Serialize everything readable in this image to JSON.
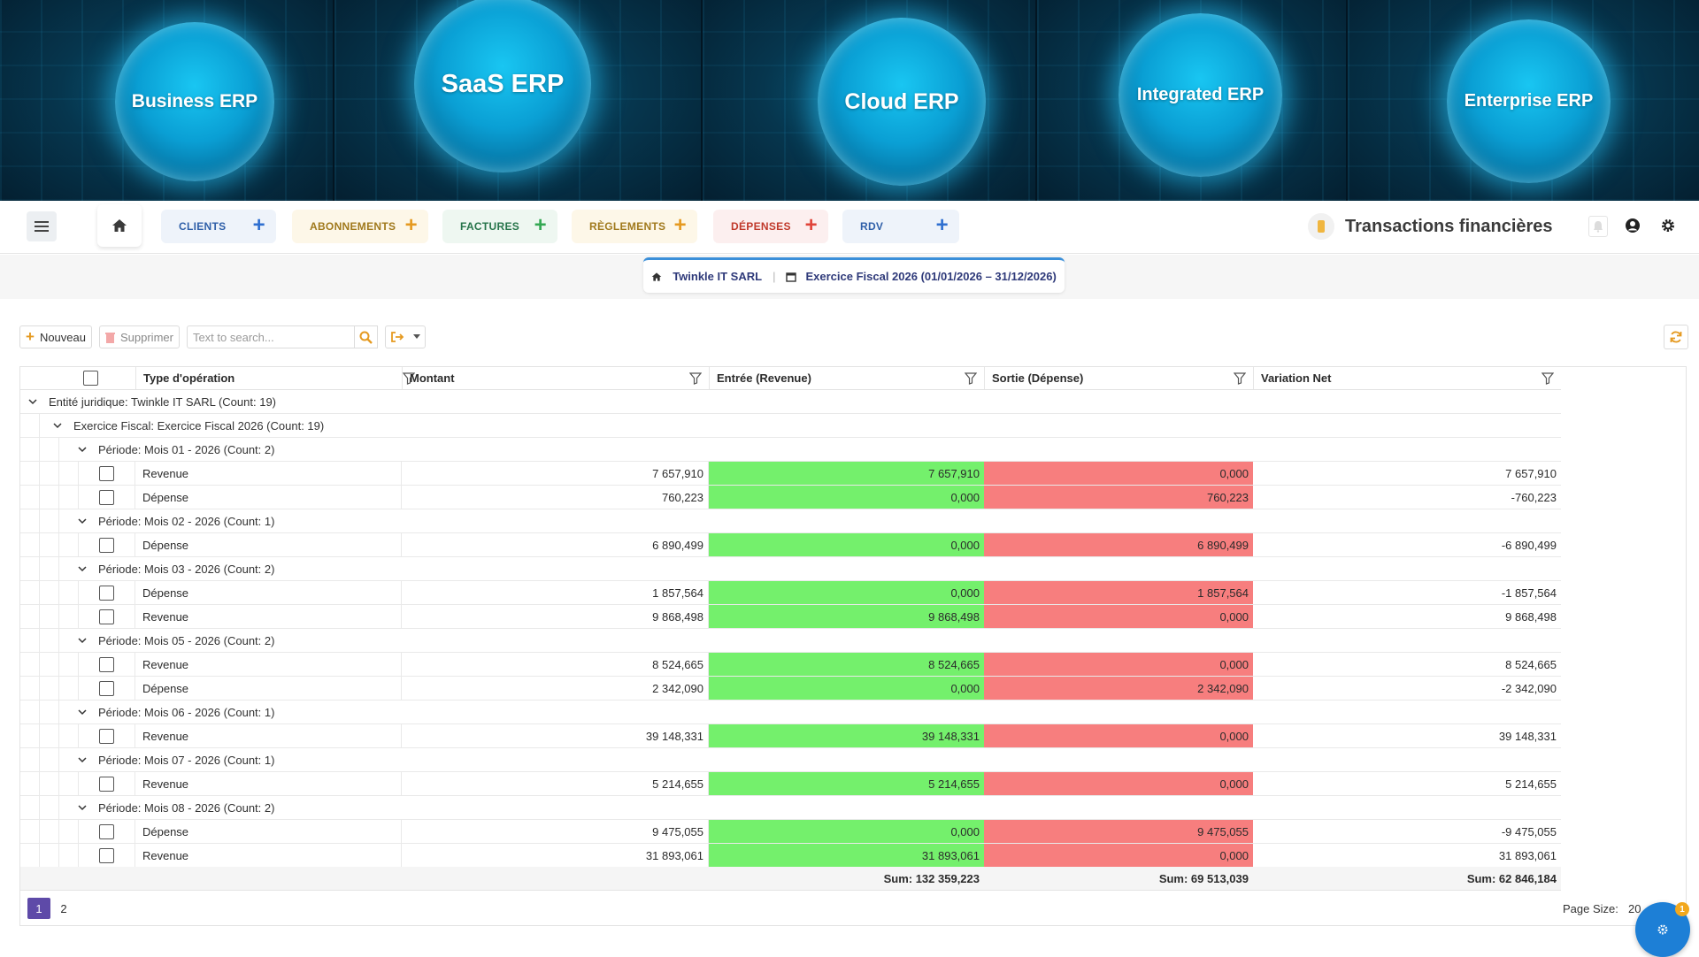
{
  "banner": {
    "panels": [
      {
        "label": "Business ERP"
      },
      {
        "label": "SaaS ERP"
      },
      {
        "label": "Cloud ERP"
      },
      {
        "label": "Integrated ERP"
      },
      {
        "label": "Enterprise ERP"
      }
    ]
  },
  "nav": {
    "tabs": [
      {
        "label": "CLIENTS",
        "color": "#2f5fa8",
        "bg": "#eef3fa",
        "plus_color": "#2f6fd0"
      },
      {
        "label": "ABONNEMENTS",
        "color": "#a0791c",
        "bg": "#fdf7e8",
        "plus_color": "#e59a21"
      },
      {
        "label": "FACTURES",
        "color": "#26744a",
        "bg": "#eef7f1",
        "plus_color": "#34a853"
      },
      {
        "label": "RÈGLEMENTS",
        "color": "#a0791c",
        "bg": "#fdf7e8",
        "plus_color": "#e59a21"
      },
      {
        "label": "DÉPENSES",
        "color": "#c0392b",
        "bg": "#fcefef",
        "plus_color": "#e0443a"
      },
      {
        "label": "RDV",
        "color": "#2f5fa8",
        "bg": "#eef3fa",
        "plus_color": "#2f6fd0"
      }
    ],
    "plus_glyph": "+",
    "page_title": "Transactions financières"
  },
  "context": {
    "company": "Twinkle IT SARL",
    "separator": "|",
    "fiscal_year": "Exercice Fiscal 2026 (01/01/2026 – 31/12/2026)"
  },
  "gridtoolbar": {
    "new_label": "Nouveau",
    "delete_label": "Supprimer",
    "search_placeholder": "Text to search..."
  },
  "grid": {
    "columns": [
      "Type d'opération",
      "Montant",
      "Entrée (Revenue)",
      "Sortie (Dépense)",
      "Variation Net"
    ],
    "group_entity": "Entité juridique: Twinkle IT SARL (Count: 19)",
    "group_fiscal": "Exercice Fiscal: Exercice Fiscal 2026 (Count: 19)",
    "periods": [
      {
        "label": "Période: Mois 01 - 2026 (Count: 2)",
        "rows": [
          {
            "type": "Revenue",
            "montant": "7 657,910",
            "entree": "7 657,910",
            "sortie": "0,000",
            "net": "7 657,910"
          },
          {
            "type": "Dépense",
            "montant": "760,223",
            "entree": "0,000",
            "sortie": "760,223",
            "net": "-760,223"
          }
        ]
      },
      {
        "label": "Période: Mois 02 - 2026 (Count: 1)",
        "rows": [
          {
            "type": "Dépense",
            "montant": "6 890,499",
            "entree": "0,000",
            "sortie": "6 890,499",
            "net": "-6 890,499"
          }
        ]
      },
      {
        "label": "Période: Mois 03 - 2026 (Count: 2)",
        "rows": [
          {
            "type": "Dépense",
            "montant": "1 857,564",
            "entree": "0,000",
            "sortie": "1 857,564",
            "net": "-1 857,564"
          },
          {
            "type": "Revenue",
            "montant": "9 868,498",
            "entree": "9 868,498",
            "sortie": "0,000",
            "net": "9 868,498"
          }
        ]
      },
      {
        "label": "Période: Mois 05 - 2026 (Count: 2)",
        "rows": [
          {
            "type": "Revenue",
            "montant": "8 524,665",
            "entree": "8 524,665",
            "sortie": "0,000",
            "net": "8 524,665"
          },
          {
            "type": "Dépense",
            "montant": "2 342,090",
            "entree": "0,000",
            "sortie": "2 342,090",
            "net": "-2 342,090"
          }
        ]
      },
      {
        "label": "Période: Mois 06 - 2026 (Count: 1)",
        "rows": [
          {
            "type": "Revenue",
            "montant": "39 148,331",
            "entree": "39 148,331",
            "sortie": "0,000",
            "net": "39 148,331"
          }
        ]
      },
      {
        "label": "Période: Mois 07 - 2026 (Count: 1)",
        "rows": [
          {
            "type": "Revenue",
            "montant": "5 214,655",
            "entree": "5 214,655",
            "sortie": "0,000",
            "net": "5 214,655"
          }
        ]
      },
      {
        "label": "Période: Mois 08 - 2026 (Count: 2)",
        "rows": [
          {
            "type": "Dépense",
            "montant": "9 475,055",
            "entree": "0,000",
            "sortie": "9 475,055",
            "net": "-9 475,055"
          },
          {
            "type": "Revenue",
            "montant": "31 893,061",
            "entree": "31 893,061",
            "sortie": "0,000",
            "net": "31 893,061"
          }
        ]
      }
    ],
    "sums": {
      "entree": "Sum: 132 359,223",
      "sortie": "Sum: 69 513,039",
      "net": "Sum: 62 846,184"
    }
  },
  "pager": {
    "pages": [
      "1",
      "2"
    ],
    "active": "1",
    "page_size_label": "Page Size:",
    "page_size_value": "20"
  },
  "fab": {
    "badge": "1"
  },
  "colors": {
    "income": "#74f06c",
    "expense": "#f77e7e",
    "accent": "#5e4aa8"
  }
}
